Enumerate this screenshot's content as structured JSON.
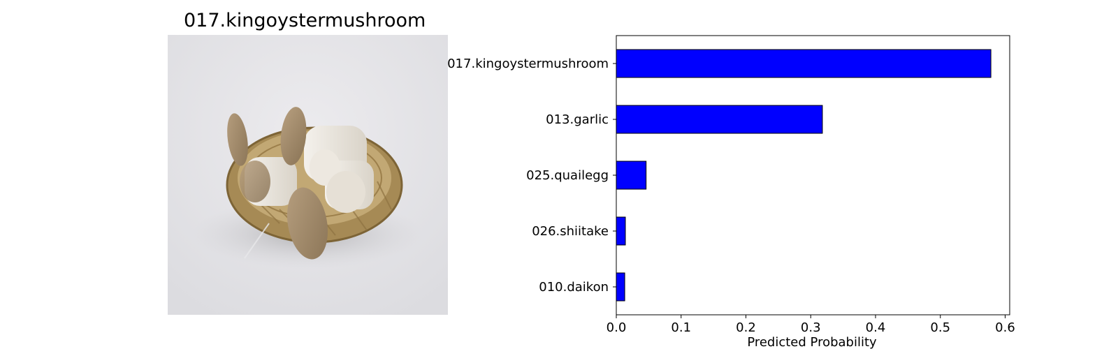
{
  "image_panel": {
    "title": "017.kingoystermushroom"
  },
  "chart_data": {
    "type": "bar",
    "orientation": "horizontal",
    "categories": [
      "017.kingoystermushroom",
      "013.garlic",
      "025.quailegg",
      "026.shiitake",
      "010.daikon"
    ],
    "values": [
      0.578,
      0.318,
      0.046,
      0.014,
      0.013
    ],
    "xlabel": "Predicted Probability",
    "xlim": [
      0.0,
      0.607
    ],
    "xticks": [
      0.0,
      0.1,
      0.2,
      0.3,
      0.4,
      0.5,
      0.6
    ],
    "xtick_labels": [
      "0.0",
      "0.1",
      "0.2",
      "0.3",
      "0.4",
      "0.5",
      "0.6"
    ],
    "bar_color": "#0000ff",
    "edge_color": "#000000",
    "grid": false,
    "legend": false
  }
}
